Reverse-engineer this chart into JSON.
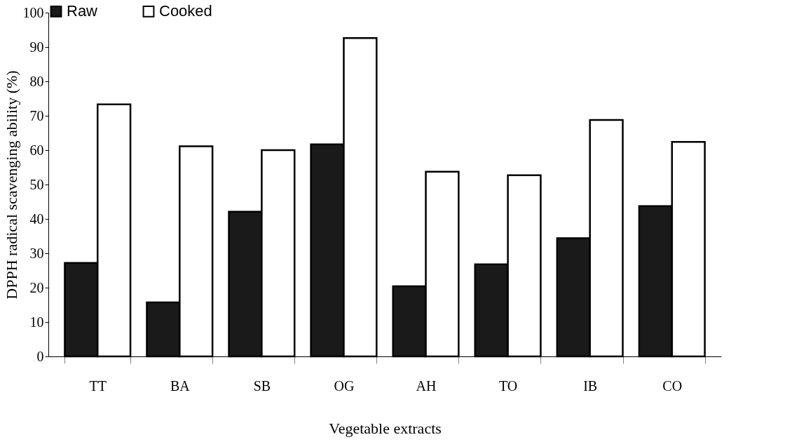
{
  "chart_data": {
    "type": "bar",
    "xlabel": "Vegetable extracts",
    "ylabel": "DPPH radical scavenging ability (%)",
    "categories": [
      "TT",
      "BA",
      "SB",
      "OG",
      "AH",
      "TO",
      "IB",
      "CO"
    ],
    "series": [
      {
        "name": "Raw",
        "color": "#1a1a1a",
        "values": [
          27.2,
          15.7,
          42.1,
          61.7,
          20.4,
          26.8,
          34.4,
          43.7
        ]
      },
      {
        "name": "Cooked",
        "color": "#ffffff",
        "values": [
          73.3,
          61.1,
          60.0,
          92.6,
          53.7,
          52.7,
          68.8,
          62.4
        ]
      }
    ],
    "ylim": [
      0,
      100
    ],
    "yticks": [
      0,
      10,
      20,
      30,
      40,
      50,
      60,
      70,
      80,
      90,
      100
    ],
    "grid": false,
    "legend": "top"
  }
}
